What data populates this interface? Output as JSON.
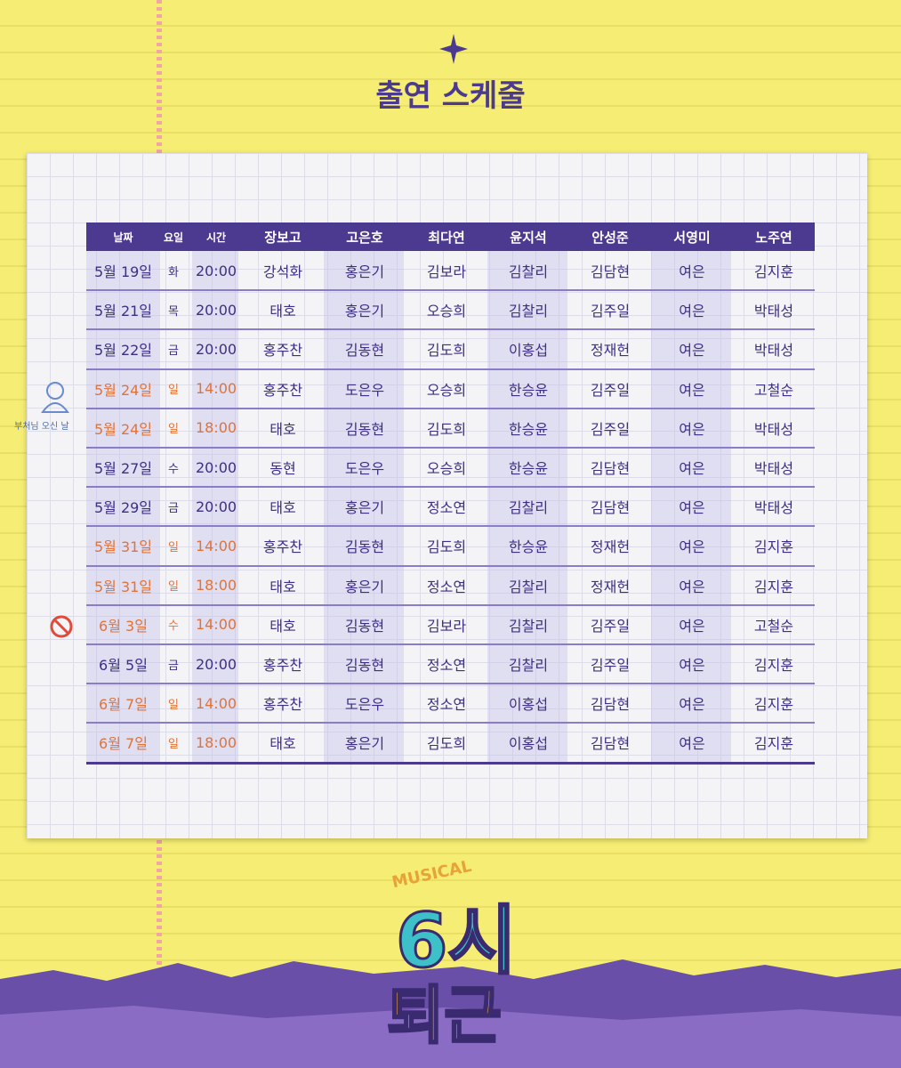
{
  "title": "출연 스케줄",
  "table": {
    "header": [
      "날짜",
      "요일",
      "시간",
      "장보고",
      "고은호",
      "최다연",
      "윤지석",
      "안성준",
      "서영미",
      "노주연"
    ],
    "rows": [
      {
        "cells": [
          "5월 19일",
          "화",
          "20:00",
          "강석화",
          "홍은기",
          "김보라",
          "김찰리",
          "김담현",
          "여은",
          "김지훈"
        ],
        "date_color": "#3d2f86"
      },
      {
        "cells": [
          "5월 21일",
          "목",
          "20:00",
          "태호",
          "홍은기",
          "오승희",
          "김찰리",
          "김주일",
          "여은",
          "박태성"
        ],
        "date_color": "#3d2f86"
      },
      {
        "cells": [
          "5월 22일",
          "금",
          "20:00",
          "홍주찬",
          "김동현",
          "김도희",
          "이홍섭",
          "정재헌",
          "여은",
          "박태성"
        ],
        "date_color": "#3d2f86"
      },
      {
        "cells": [
          "5월 24일",
          "일",
          "14:00",
          "홍주찬",
          "도은우",
          "오승희",
          "한승윤",
          "김주일",
          "여은",
          "고철순"
        ],
        "date_color": "#e0733a"
      },
      {
        "cells": [
          "5월 24일",
          "일",
          "18:00",
          "태호",
          "김동현",
          "김도희",
          "한승윤",
          "김주일",
          "여은",
          "박태성"
        ],
        "date_color": "#e0733a"
      },
      {
        "cells": [
          "5월 27일",
          "수",
          "20:00",
          "동현",
          "도은우",
          "오승희",
          "한승윤",
          "김담현",
          "여은",
          "박태성"
        ],
        "date_color": "#3d2f86"
      },
      {
        "cells": [
          "5월 29일",
          "금",
          "20:00",
          "태호",
          "홍은기",
          "정소연",
          "김찰리",
          "김담현",
          "여은",
          "박태성"
        ],
        "date_color": "#3d2f86"
      },
      {
        "cells": [
          "5월 31일",
          "일",
          "14:00",
          "홍주찬",
          "김동현",
          "김도희",
          "한승윤",
          "정재헌",
          "여은",
          "김지훈"
        ],
        "date_color": "#e0733a"
      },
      {
        "cells": [
          "5월 31일",
          "일",
          "18:00",
          "태호",
          "홍은기",
          "정소연",
          "김찰리",
          "정재헌",
          "여은",
          "김지훈"
        ],
        "date_color": "#e0733a"
      },
      {
        "cells": [
          "6월 3일",
          "수",
          "14:00",
          "태호",
          "김동현",
          "김보라",
          "김찰리",
          "김주일",
          "여은",
          "고철순"
        ],
        "date_color": "#e0733a"
      },
      {
        "cells": [
          "6월 5일",
          "금",
          "20:00",
          "홍주찬",
          "김동현",
          "정소연",
          "김찰리",
          "김주일",
          "여은",
          "김지훈"
        ],
        "date_color": "#3d2f86"
      },
      {
        "cells": [
          "6월 7일",
          "일",
          "14:00",
          "홍주찬",
          "도은우",
          "정소연",
          "이홍섭",
          "김담현",
          "여은",
          "김지훈"
        ],
        "date_color": "#e0733a"
      },
      {
        "cells": [
          "6월 7일",
          "일",
          "18:00",
          "태호",
          "홍은기",
          "김도희",
          "이홍섭",
          "김담현",
          "여은",
          "김지훈"
        ],
        "date_color": "#e0733a"
      }
    ]
  },
  "side_note": "부처님 오신 날",
  "logo": {
    "top": "MUSICAL",
    "line1": "6시",
    "line2": "퇴근"
  }
}
